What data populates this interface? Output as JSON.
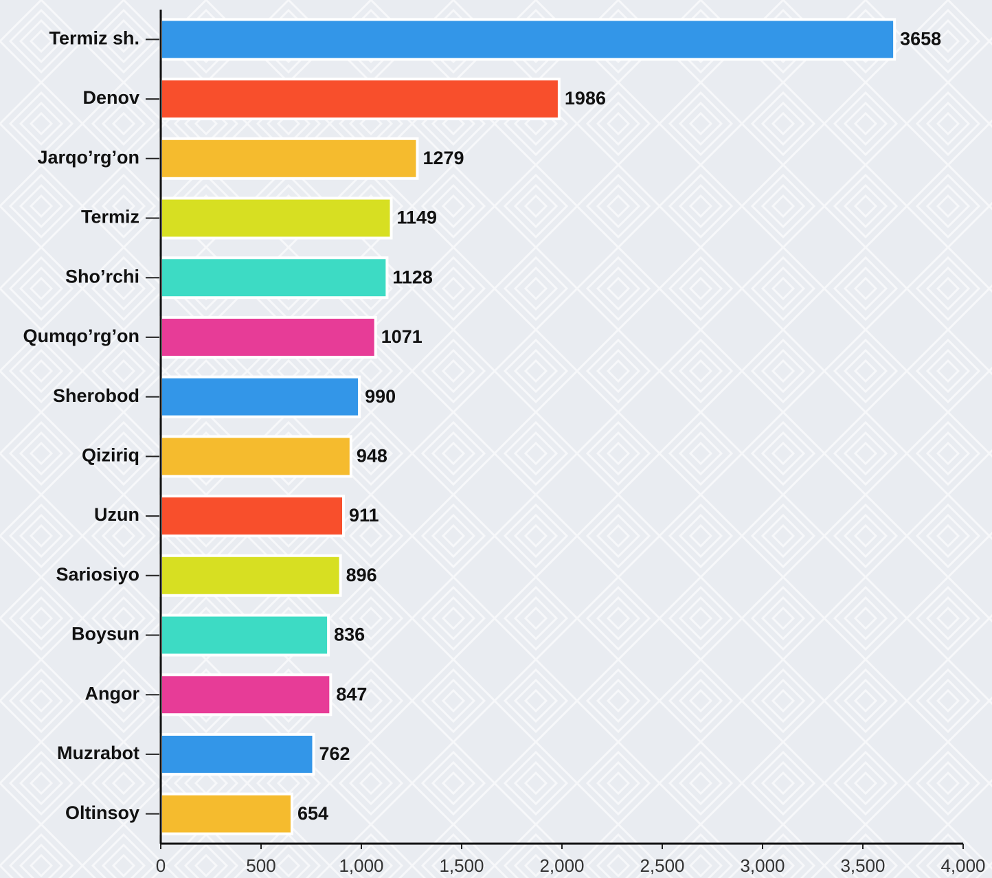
{
  "chart_data": {
    "type": "bar",
    "orientation": "horizontal",
    "categories": [
      "Termiz sh.",
      "Denov",
      "Jarqo’rg’on",
      "Termiz",
      "Sho’rchi",
      "Qumqo’rg’on",
      "Sherobod",
      "Qiziriq",
      "Uzun",
      "Sariosiyo",
      "Boysun",
      "Angor",
      "Muzrabot",
      "Oltinsoy"
    ],
    "values": [
      3658,
      1986,
      1279,
      1149,
      1128,
      1071,
      990,
      948,
      911,
      896,
      836,
      847,
      762,
      654
    ],
    "colors": [
      "#3396e8",
      "#f84f2c",
      "#f5bb2e",
      "#d7df22",
      "#3ddbc4",
      "#e73c97",
      "#3396e8",
      "#f5bb2e",
      "#f84f2c",
      "#d7df22",
      "#3ddbc4",
      "#e73c97",
      "#3396e8",
      "#f5bb2e"
    ],
    "xlim": [
      0,
      4000
    ],
    "xticks": [
      0,
      500,
      {
        "value": 1000,
        "label": "1,000"
      },
      {
        "value": 1500,
        "label": "1,500"
      },
      {
        "value": 2000,
        "label": "2,000"
      },
      {
        "value": 2500,
        "label": "2,500"
      },
      {
        "value": 3000,
        "label": "3,000"
      },
      {
        "value": 3500,
        "label": "3,500"
      },
      {
        "value": 4000,
        "label": "4,000"
      }
    ],
    "grid": false
  }
}
